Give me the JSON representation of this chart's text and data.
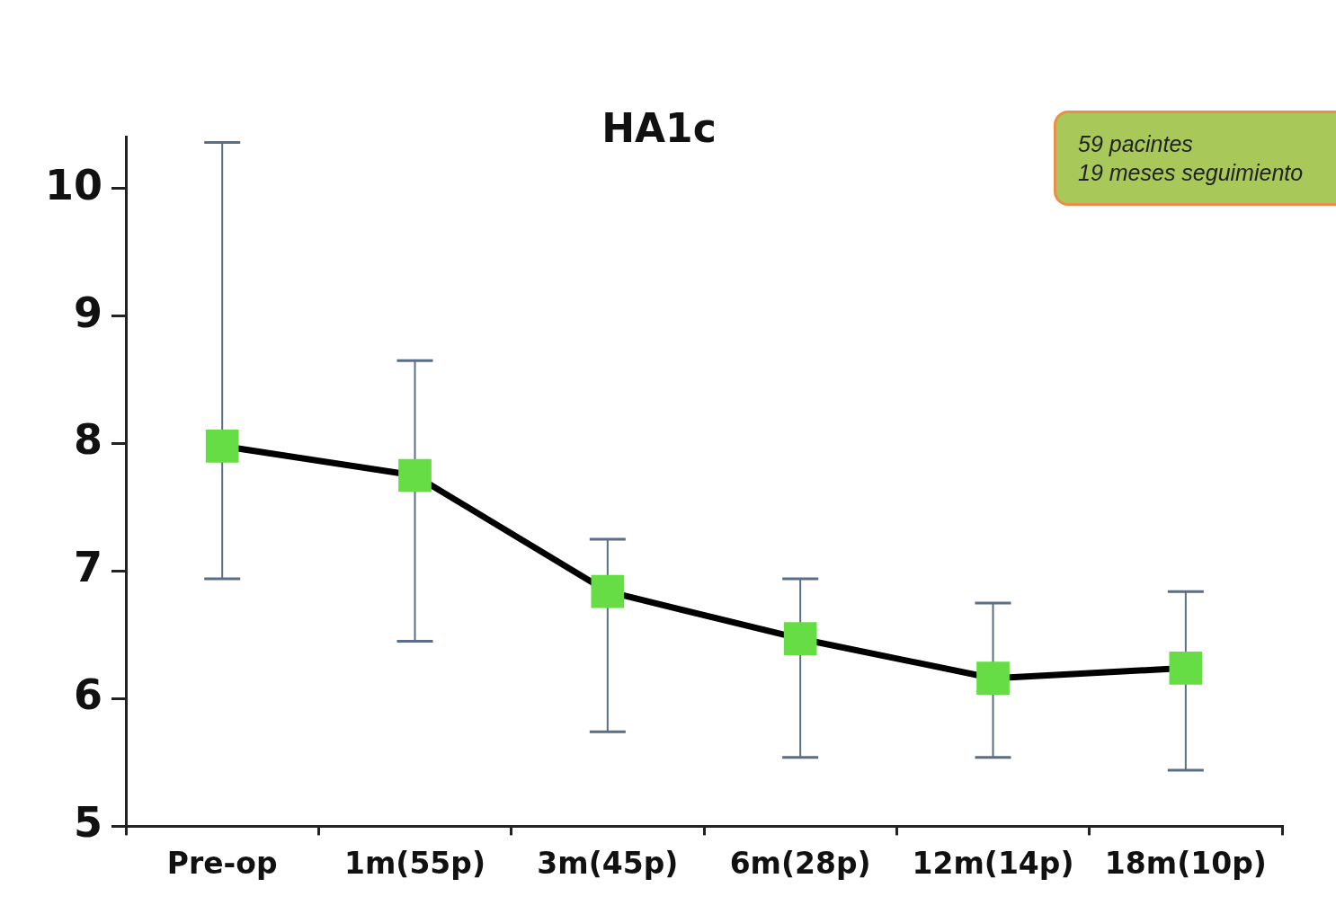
{
  "chart_data": {
    "type": "line",
    "title": "HA1c",
    "categories": [
      "Pre-op",
      "1m(55p)",
      "3m(45p)",
      "6m(28p)",
      "12m(14p)",
      "18m(10p)"
    ],
    "series": [
      {
        "color": "#66dd44",
        "values": [
          7.98,
          7.75,
          6.84,
          6.47,
          6.16,
          6.24
        ],
        "errors": [
          [
            6.94,
            10.36
          ],
          [
            6.45,
            8.65
          ],
          [
            5.74,
            7.25
          ],
          [
            5.54,
            6.94
          ],
          [
            5.54,
            6.75
          ],
          [
            5.44,
            6.84
          ]
        ]
      }
    ],
    "ylim": [
      5,
      10.4
    ],
    "yticks": [
      5,
      6,
      7,
      8,
      9,
      10
    ],
    "grid": false,
    "legend": false,
    "marker": "square",
    "line_style": "solid",
    "annotations": [
      "59 pacintes\n19 meses seguimiento"
    ]
  }
}
